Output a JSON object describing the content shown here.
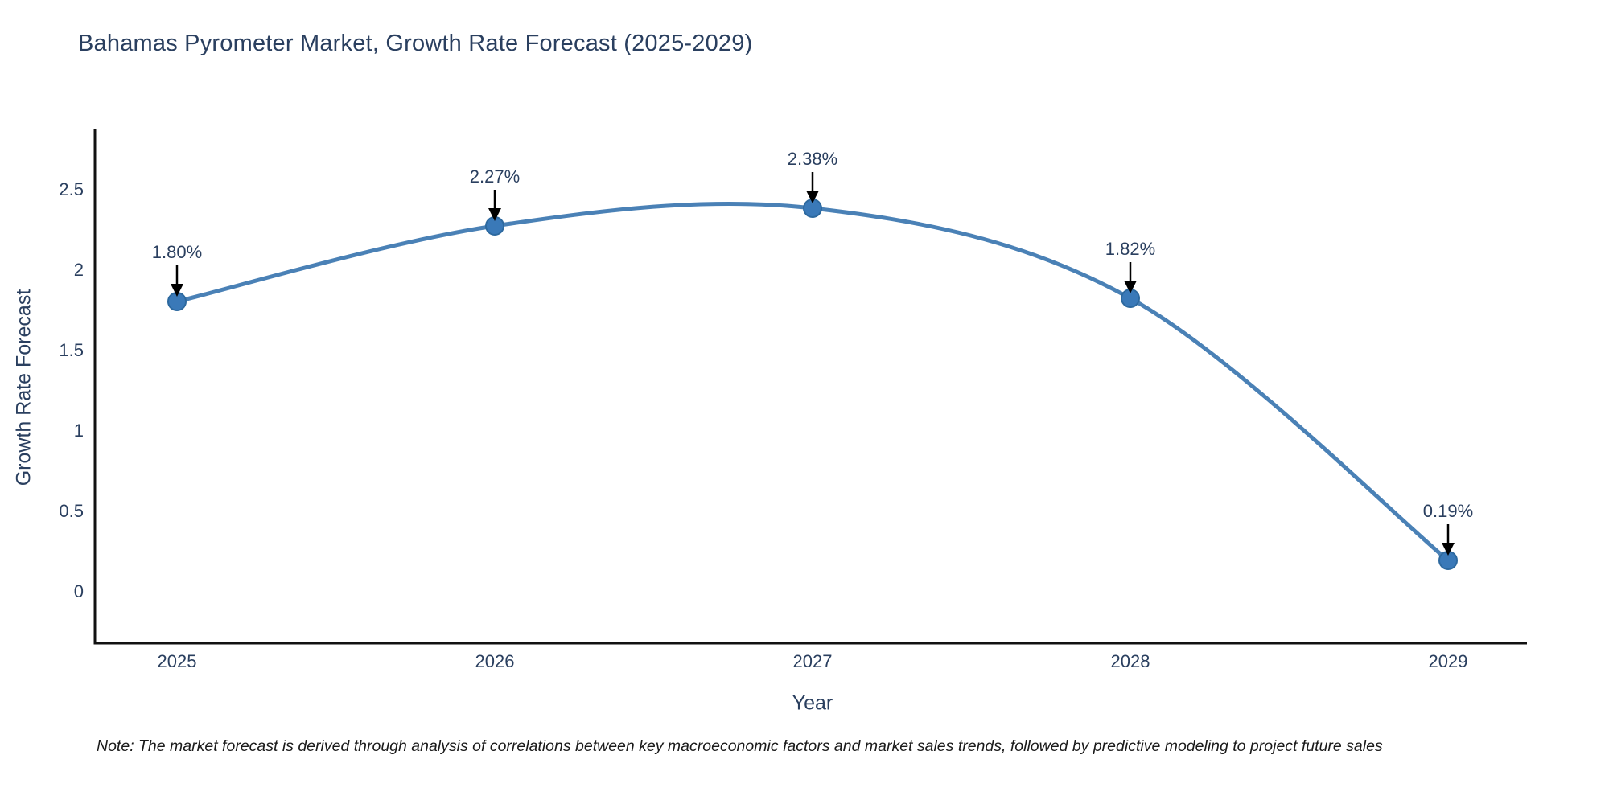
{
  "note": "Note: The market forecast is derived through analysis of correlations between key macroeconomic factors and market sales trends, followed by predictive modeling to project future sales",
  "colors": {
    "line": "#4a81b6",
    "marker_fill": "#3a79b8",
    "marker_edge": "#2d699f",
    "axis": "#111111",
    "tick_text": "#2a3f5f",
    "annotation_text": "#2a3f5f",
    "arrow": "#000000",
    "background": "#ffffff"
  },
  "chart_data": {
    "type": "line",
    "title": "Bahamas Pyrometer Market, Growth Rate Forecast (2025-2029)",
    "xlabel": "Year",
    "ylabel": "Growth Rate Forecast",
    "x": [
      2025,
      2026,
      2027,
      2028,
      2029
    ],
    "xticklabels": [
      "2025",
      "2026",
      "2027",
      "2028",
      "2029"
    ],
    "series": [
      {
        "name": "Growth Rate Forecast",
        "values": [
          1.8,
          2.27,
          2.38,
          1.82,
          0.19
        ]
      }
    ],
    "point_labels": [
      "1.80%",
      "2.27%",
      "2.38%",
      "1.82%",
      "0.19%"
    ],
    "yticks": [
      0,
      0.5,
      1,
      1.5,
      2,
      2.5
    ],
    "yticklabels": [
      "0",
      "0.5",
      "1",
      "1.5",
      "2",
      "2.5"
    ],
    "ylim": [
      -0.33,
      2.87
    ],
    "line_shape": "spline",
    "grid": false,
    "legend_position": "none",
    "annotation_style": "black-down-arrow"
  }
}
